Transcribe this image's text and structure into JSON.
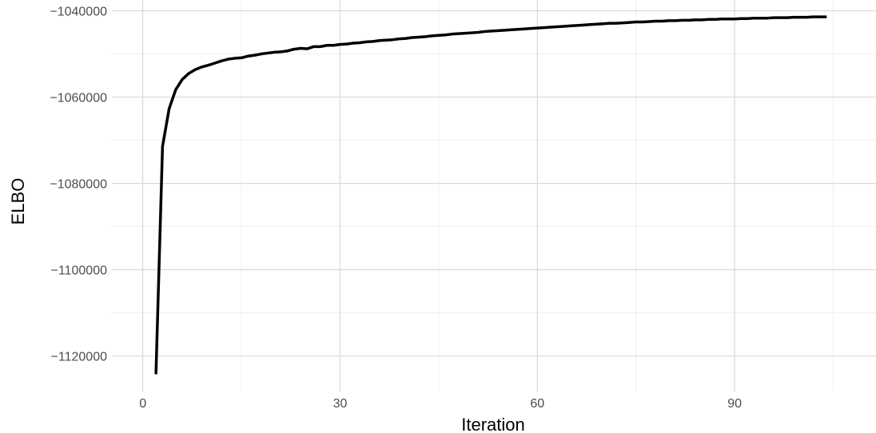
{
  "chart_data": {
    "type": "line",
    "title": "",
    "xlabel": "Iteration",
    "ylabel": "ELBO",
    "xlim": [
      -4.7,
      111.5
    ],
    "ylim": [
      -1128200,
      -1037500
    ],
    "x_ticks": [
      0,
      30,
      60,
      90
    ],
    "x_tick_labels": [
      "0",
      "30",
      "60",
      "90"
    ],
    "y_ticks": [
      -1120000,
      -1100000,
      -1080000,
      -1060000,
      -1040000
    ],
    "y_tick_labels": [
      "−1120000",
      "−1100000",
      "−1080000",
      "−1060000",
      "−1040000"
    ],
    "grid": true,
    "legend": "none",
    "colors": {
      "line": "#000000",
      "grid_major": "#d9d9d9",
      "grid_minor": "#ebebeb",
      "tick_text": "#4d4d4d",
      "background": "#ffffff"
    },
    "series": [
      {
        "x": [
          2,
          3,
          4,
          5,
          6,
          7,
          8,
          9,
          10,
          11,
          12,
          13,
          14,
          15,
          16,
          17,
          18,
          19,
          20,
          21,
          22,
          23,
          24,
          25,
          26,
          27,
          28,
          29,
          30,
          31,
          32,
          33,
          34,
          35,
          36,
          37,
          38,
          39,
          40,
          41,
          42,
          43,
          44,
          45,
          46,
          47,
          48,
          49,
          50,
          51,
          52,
          53,
          54,
          55,
          56,
          57,
          58,
          59,
          60,
          61,
          62,
          63,
          64,
          65,
          66,
          67,
          68,
          69,
          70,
          71,
          72,
          73,
          74,
          75,
          76,
          77,
          78,
          79,
          80,
          81,
          82,
          83,
          84,
          85,
          86,
          87,
          88,
          89,
          90,
          91,
          92,
          93,
          94,
          95,
          96,
          97,
          98,
          99,
          100,
          101,
          102,
          103,
          104
        ],
        "y": [
          -1124200,
          -1071400,
          -1062700,
          -1058300,
          -1055900,
          -1054500,
          -1053600,
          -1053000,
          -1052600,
          -1052100,
          -1051600,
          -1051200,
          -1051000,
          -1050900,
          -1050500,
          -1050300,
          -1050000,
          -1049800,
          -1049600,
          -1049500,
          -1049300,
          -1048900,
          -1048700,
          -1048800,
          -1048300,
          -1048300,
          -1048000,
          -1048000,
          -1047800,
          -1047700,
          -1047500,
          -1047400,
          -1047200,
          -1047100,
          -1046900,
          -1046800,
          -1046700,
          -1046500,
          -1046400,
          -1046200,
          -1046100,
          -1046000,
          -1045800,
          -1045700,
          -1045600,
          -1045400,
          -1045300,
          -1045200,
          -1045100,
          -1045000,
          -1044800,
          -1044700,
          -1044600,
          -1044500,
          -1044400,
          -1044300,
          -1044200,
          -1044100,
          -1044000,
          -1043900,
          -1043800,
          -1043700,
          -1043600,
          -1043500,
          -1043400,
          -1043300,
          -1043200,
          -1043100,
          -1043000,
          -1042900,
          -1042900,
          -1042800,
          -1042700,
          -1042600,
          -1042600,
          -1042500,
          -1042400,
          -1042400,
          -1042300,
          -1042300,
          -1042200,
          -1042200,
          -1042100,
          -1042100,
          -1042000,
          -1042000,
          -1041900,
          -1041900,
          -1041900,
          -1041800,
          -1041800,
          -1041700,
          -1041700,
          -1041700,
          -1041600,
          -1041600,
          -1041600,
          -1041500,
          -1041500,
          -1041500,
          -1041400,
          -1041400,
          -1041400
        ]
      }
    ]
  }
}
